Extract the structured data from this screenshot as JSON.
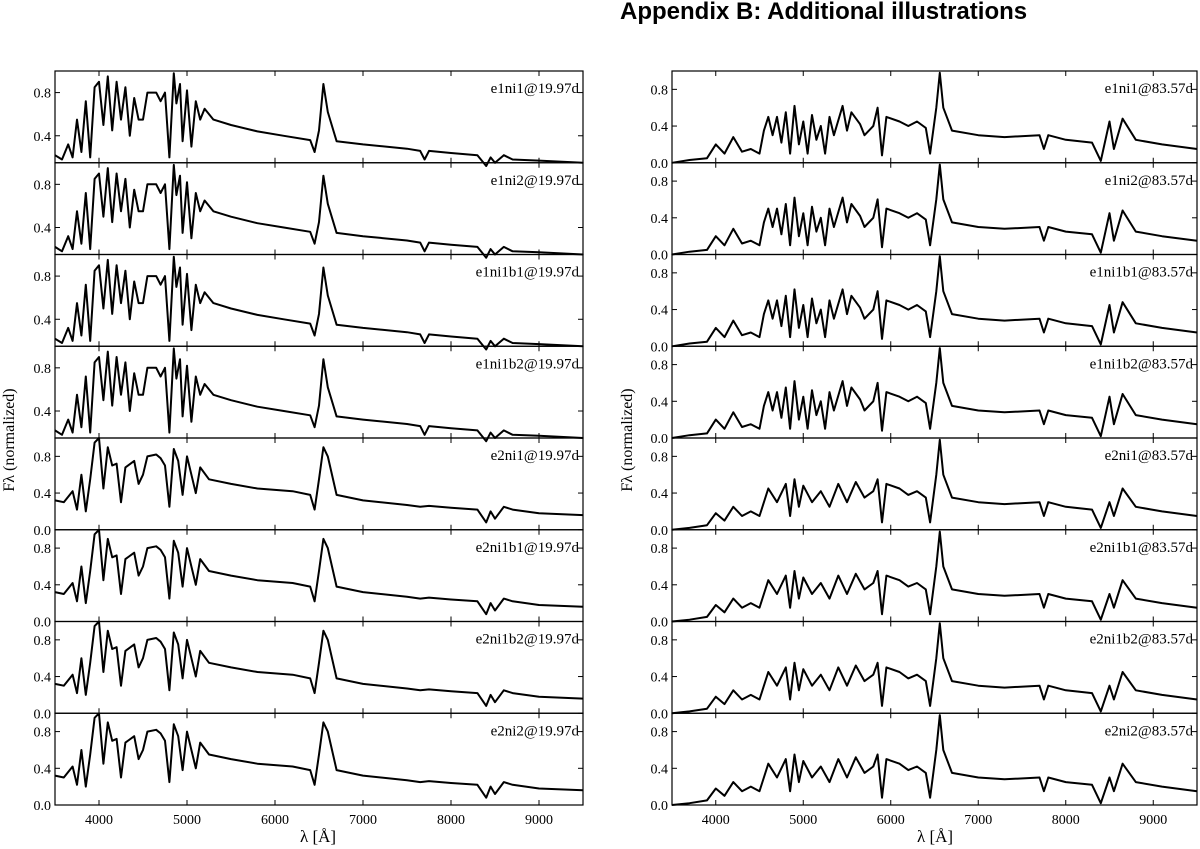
{
  "heading": "Appendix B:  Additional illustrations",
  "chart_data": {
    "type": "line",
    "xlabel": "λ [Å]",
    "ylabel": "Fλ (normalized)",
    "xlim": [
      3500,
      9500
    ],
    "x_ticks": [
      4000,
      5000,
      6000,
      7000,
      8000,
      9000
    ],
    "columns": [
      {
        "ylim": [
          0.0,
          1.0
        ],
        "y_ticks_top": [
          0.4,
          0.8
        ],
        "y_ticks": [
          0.0,
          0.4,
          0.8
        ],
        "panels": [
          {
            "label": "e1ni1@19.97d",
            "ylim": [
              0.15,
              1.0
            ],
            "y_ticks": [
              0.4,
              0.8
            ]
          },
          {
            "label": "e1ni2@19.97d",
            "ylim": [
              0.15,
              1.0
            ],
            "y_ticks": [
              0.4,
              0.8
            ]
          },
          {
            "label": "e1ni1b1@19.97d",
            "ylim": [
              0.15,
              1.0
            ],
            "y_ticks": [
              0.4,
              0.8
            ]
          },
          {
            "label": "e1ni1b2@19.97d",
            "ylim": [
              0.15,
              1.0
            ],
            "y_ticks": [
              0.4,
              0.8
            ]
          },
          {
            "label": "e2ni1@19.97d",
            "ylim": [
              0.0,
              1.0
            ],
            "y_ticks": [
              0.0,
              0.4,
              0.8
            ]
          },
          {
            "label": "e2ni1b1@19.97d",
            "ylim": [
              0.0,
              1.0
            ],
            "y_ticks": [
              0.0,
              0.4,
              0.8
            ]
          },
          {
            "label": "e2ni1b2@19.97d",
            "ylim": [
              0.0,
              1.0
            ],
            "y_ticks": [
              0.0,
              0.4,
              0.8
            ]
          },
          {
            "label": "e2ni2@19.97d",
            "ylim": [
              0.0,
              1.0
            ],
            "y_ticks": [
              0.0,
              0.4,
              0.8
            ]
          }
        ]
      },
      {
        "panels": [
          {
            "label": "e1ni1@83.57d",
            "ylim": [
              0.0,
              1.0
            ],
            "y_ticks": [
              0.0,
              0.4,
              0.8
            ]
          },
          {
            "label": "e1ni2@83.57d",
            "ylim": [
              0.0,
              1.0
            ],
            "y_ticks": [
              0.0,
              0.4,
              0.8
            ]
          },
          {
            "label": "e1ni1b1@83.57d",
            "ylim": [
              0.0,
              1.0
            ],
            "y_ticks": [
              0.0,
              0.4,
              0.8
            ]
          },
          {
            "label": "e1ni1b2@83.57d",
            "ylim": [
              0.0,
              1.0
            ],
            "y_ticks": [
              0.0,
              0.4,
              0.8
            ]
          },
          {
            "label": "e2ni1@83.57d",
            "ylim": [
              0.0,
              1.0
            ],
            "y_ticks": [
              0.0,
              0.4,
              0.8
            ]
          },
          {
            "label": "e2ni1b1@83.57d",
            "ylim": [
              0.0,
              1.0
            ],
            "y_ticks": [
              0.0,
              0.4,
              0.8
            ]
          },
          {
            "label": "e2ni1b2@83.57d",
            "ylim": [
              0.0,
              1.0
            ],
            "y_ticks": [
              0.0,
              0.4,
              0.8
            ]
          },
          {
            "label": "e2ni2@83.57d",
            "ylim": [
              0.0,
              1.0
            ],
            "y_ticks": [
              0.0,
              0.4,
              0.8
            ]
          }
        ]
      }
    ],
    "series_shapes": {
      "early_e1": [
        [
          3500,
          0.22
        ],
        [
          3580,
          0.18
        ],
        [
          3650,
          0.32
        ],
        [
          3700,
          0.2
        ],
        [
          3750,
          0.55
        ],
        [
          3800,
          0.25
        ],
        [
          3850,
          0.72
        ],
        [
          3900,
          0.2
        ],
        [
          3950,
          0.85
        ],
        [
          4000,
          0.9
        ],
        [
          4050,
          0.5
        ],
        [
          4100,
          0.95
        ],
        [
          4150,
          0.45
        ],
        [
          4200,
          0.9
        ],
        [
          4250,
          0.55
        ],
        [
          4300,
          0.85
        ],
        [
          4350,
          0.4
        ],
        [
          4400,
          0.75
        ],
        [
          4450,
          0.55
        ],
        [
          4500,
          0.55
        ],
        [
          4550,
          0.8
        ],
        [
          4650,
          0.8
        ],
        [
          4700,
          0.72
        ],
        [
          4750,
          0.8
        ],
        [
          4800,
          0.2
        ],
        [
          4850,
          0.98
        ],
        [
          4880,
          0.7
        ],
        [
          4920,
          0.88
        ],
        [
          4950,
          0.35
        ],
        [
          5000,
          0.82
        ],
        [
          5050,
          0.3
        ],
        [
          5100,
          0.72
        ],
        [
          5150,
          0.55
        ],
        [
          5200,
          0.65
        ],
        [
          5300,
          0.55
        ],
        [
          5500,
          0.5
        ],
        [
          5800,
          0.44
        ],
        [
          6100,
          0.4
        ],
        [
          6400,
          0.36
        ],
        [
          6450,
          0.25
        ],
        [
          6500,
          0.45
        ],
        [
          6550,
          0.88
        ],
        [
          6600,
          0.62
        ],
        [
          6700,
          0.35
        ],
        [
          7000,
          0.32
        ],
        [
          7500,
          0.28
        ],
        [
          7650,
          0.26
        ],
        [
          7700,
          0.18
        ],
        [
          7750,
          0.26
        ],
        [
          8000,
          0.24
        ],
        [
          8300,
          0.22
        ],
        [
          8400,
          0.12
        ],
        [
          8450,
          0.2
        ],
        [
          8500,
          0.15
        ],
        [
          8600,
          0.22
        ],
        [
          8700,
          0.18
        ],
        [
          9000,
          0.17
        ],
        [
          9500,
          0.15
        ]
      ],
      "early_e2": [
        [
          3500,
          0.32
        ],
        [
          3600,
          0.3
        ],
        [
          3700,
          0.42
        ],
        [
          3750,
          0.22
        ],
        [
          3800,
          0.6
        ],
        [
          3850,
          0.2
        ],
        [
          3900,
          0.55
        ],
        [
          3950,
          0.95
        ],
        [
          4000,
          1.0
        ],
        [
          4050,
          0.45
        ],
        [
          4100,
          0.9
        ],
        [
          4150,
          0.7
        ],
        [
          4200,
          0.72
        ],
        [
          4250,
          0.3
        ],
        [
          4300,
          0.68
        ],
        [
          4400,
          0.75
        ],
        [
          4450,
          0.5
        ],
        [
          4500,
          0.6
        ],
        [
          4550,
          0.8
        ],
        [
          4650,
          0.82
        ],
        [
          4700,
          0.78
        ],
        [
          4750,
          0.7
        ],
        [
          4800,
          0.25
        ],
        [
          4850,
          0.88
        ],
        [
          4900,
          0.75
        ],
        [
          4950,
          0.38
        ],
        [
          5000,
          0.8
        ],
        [
          5050,
          0.6
        ],
        [
          5100,
          0.4
        ],
        [
          5150,
          0.68
        ],
        [
          5250,
          0.55
        ],
        [
          5500,
          0.5
        ],
        [
          5800,
          0.45
        ],
        [
          6200,
          0.42
        ],
        [
          6400,
          0.38
        ],
        [
          6450,
          0.22
        ],
        [
          6500,
          0.55
        ],
        [
          6550,
          0.9
        ],
        [
          6600,
          0.8
        ],
        [
          6700,
          0.38
        ],
        [
          7000,
          0.32
        ],
        [
          7500,
          0.27
        ],
        [
          7650,
          0.25
        ],
        [
          7750,
          0.26
        ],
        [
          8000,
          0.24
        ],
        [
          8300,
          0.22
        ],
        [
          8400,
          0.08
        ],
        [
          8450,
          0.2
        ],
        [
          8500,
          0.12
        ],
        [
          8600,
          0.25
        ],
        [
          8700,
          0.22
        ],
        [
          9000,
          0.18
        ],
        [
          9500,
          0.16
        ]
      ],
      "late_e1": [
        [
          3500,
          0.0
        ],
        [
          3700,
          0.03
        ],
        [
          3900,
          0.05
        ],
        [
          4000,
          0.2
        ],
        [
          4100,
          0.1
        ],
        [
          4200,
          0.28
        ],
        [
          4300,
          0.12
        ],
        [
          4400,
          0.15
        ],
        [
          4500,
          0.1
        ],
        [
          4550,
          0.35
        ],
        [
          4600,
          0.5
        ],
        [
          4650,
          0.3
        ],
        [
          4700,
          0.5
        ],
        [
          4750,
          0.22
        ],
        [
          4800,
          0.55
        ],
        [
          4850,
          0.1
        ],
        [
          4900,
          0.62
        ],
        [
          4950,
          0.2
        ],
        [
          5000,
          0.45
        ],
        [
          5050,
          0.1
        ],
        [
          5100,
          0.52
        ],
        [
          5150,
          0.25
        ],
        [
          5200,
          0.4
        ],
        [
          5250,
          0.1
        ],
        [
          5300,
          0.5
        ],
        [
          5350,
          0.3
        ],
        [
          5450,
          0.62
        ],
        [
          5500,
          0.35
        ],
        [
          5550,
          0.55
        ],
        [
          5650,
          0.42
        ],
        [
          5700,
          0.3
        ],
        [
          5800,
          0.4
        ],
        [
          5850,
          0.6
        ],
        [
          5900,
          0.08
        ],
        [
          5950,
          0.5
        ],
        [
          6100,
          0.45
        ],
        [
          6200,
          0.4
        ],
        [
          6300,
          0.45
        ],
        [
          6400,
          0.38
        ],
        [
          6450,
          0.1
        ],
        [
          6520,
          0.6
        ],
        [
          6560,
          0.98
        ],
        [
          6600,
          0.6
        ],
        [
          6700,
          0.35
        ],
        [
          7000,
          0.3
        ],
        [
          7300,
          0.28
        ],
        [
          7700,
          0.3
        ],
        [
          7750,
          0.15
        ],
        [
          7800,
          0.3
        ],
        [
          8000,
          0.25
        ],
        [
          8300,
          0.22
        ],
        [
          8400,
          0.02
        ],
        [
          8500,
          0.45
        ],
        [
          8550,
          0.15
        ],
        [
          8650,
          0.48
        ],
        [
          8800,
          0.25
        ],
        [
          9100,
          0.2
        ],
        [
          9500,
          0.15
        ]
      ],
      "late_e2": [
        [
          3500,
          0.0
        ],
        [
          3700,
          0.02
        ],
        [
          3900,
          0.05
        ],
        [
          4000,
          0.18
        ],
        [
          4100,
          0.1
        ],
        [
          4200,
          0.25
        ],
        [
          4300,
          0.15
        ],
        [
          4400,
          0.2
        ],
        [
          4500,
          0.15
        ],
        [
          4600,
          0.45
        ],
        [
          4700,
          0.3
        ],
        [
          4800,
          0.5
        ],
        [
          4850,
          0.15
        ],
        [
          4900,
          0.55
        ],
        [
          4950,
          0.25
        ],
        [
          5000,
          0.48
        ],
        [
          5100,
          0.3
        ],
        [
          5200,
          0.42
        ],
        [
          5300,
          0.25
        ],
        [
          5400,
          0.5
        ],
        [
          5500,
          0.3
        ],
        [
          5600,
          0.52
        ],
        [
          5700,
          0.35
        ],
        [
          5800,
          0.42
        ],
        [
          5850,
          0.55
        ],
        [
          5900,
          0.08
        ],
        [
          5950,
          0.5
        ],
        [
          6100,
          0.45
        ],
        [
          6200,
          0.38
        ],
        [
          6300,
          0.42
        ],
        [
          6400,
          0.35
        ],
        [
          6450,
          0.08
        ],
        [
          6520,
          0.6
        ],
        [
          6560,
          0.98
        ],
        [
          6600,
          0.6
        ],
        [
          6700,
          0.35
        ],
        [
          7000,
          0.3
        ],
        [
          7300,
          0.28
        ],
        [
          7700,
          0.3
        ],
        [
          7750,
          0.15
        ],
        [
          7800,
          0.3
        ],
        [
          8000,
          0.25
        ],
        [
          8300,
          0.22
        ],
        [
          8400,
          0.02
        ],
        [
          8500,
          0.3
        ],
        [
          8550,
          0.15
        ],
        [
          8650,
          0.45
        ],
        [
          8800,
          0.25
        ],
        [
          9100,
          0.2
        ],
        [
          9500,
          0.15
        ]
      ]
    },
    "panel_series": [
      [
        "early_e1",
        "early_e1",
        "early_e1",
        "early_e1",
        "early_e2",
        "early_e2",
        "early_e2",
        "early_e2"
      ],
      [
        "late_e1",
        "late_e1",
        "late_e1",
        "late_e1",
        "late_e2",
        "late_e2",
        "late_e2",
        "late_e2"
      ]
    ]
  }
}
